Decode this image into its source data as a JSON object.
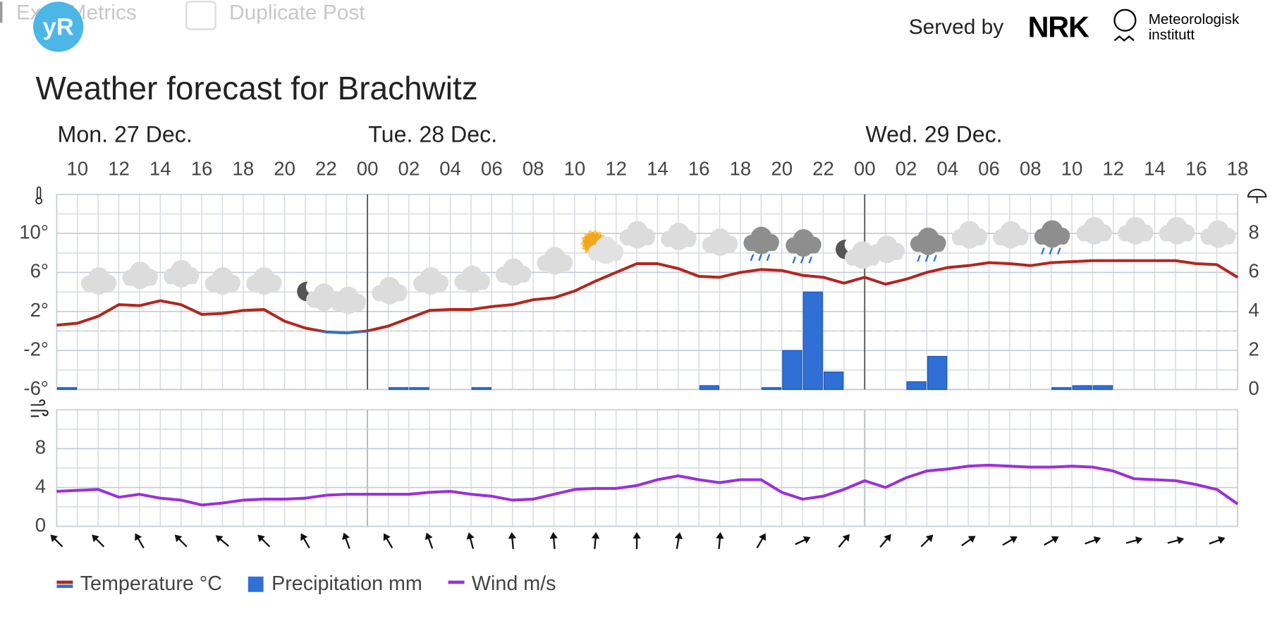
{
  "header": {
    "admin_links": [
      "ExactMetrics",
      "Duplicate Post"
    ],
    "logo": "yR",
    "served_by": "Served by",
    "nrk": "NRK",
    "met": [
      "Meteorologisk",
      "institutt"
    ]
  },
  "title": "Weather forecast for Brachwitz",
  "chart_data": [
    {
      "type": "line",
      "days": [
        {
          "label": "Mon. 27 Dec.",
          "x": 9
        },
        {
          "label": "Tue. 28 Dec.",
          "x": 24
        },
        {
          "label": "Wed. 29 Dec.",
          "x": 48
        }
      ],
      "xlim": [
        9,
        66
      ],
      "xticks": [
        10,
        12,
        14,
        16,
        18,
        20,
        22,
        {
          "value": 24,
          "label": "00"
        },
        {
          "value": 26,
          "label": "02"
        },
        {
          "value": 28,
          "label": "04"
        },
        {
          "value": 30,
          "label": "06"
        },
        {
          "value": 32,
          "label": "08"
        },
        {
          "value": 34,
          "label": "10"
        },
        {
          "value": 36,
          "label": "12"
        },
        {
          "value": 38,
          "label": "14"
        },
        {
          "value": 40,
          "label": "16"
        },
        {
          "value": 42,
          "label": "18"
        },
        {
          "value": 44,
          "label": "20"
        },
        {
          "value": 46,
          "label": "22"
        },
        {
          "value": 48,
          "label": "00"
        },
        {
          "value": 50,
          "label": "02"
        },
        {
          "value": 52,
          "label": "04"
        },
        {
          "value": 54,
          "label": "06"
        },
        {
          "value": 56,
          "label": "08"
        },
        {
          "value": 58,
          "label": "10"
        },
        {
          "value": 60,
          "label": "12"
        },
        {
          "value": 62,
          "label": "14"
        },
        {
          "value": 64,
          "label": "16"
        },
        {
          "value": 66,
          "label": "18"
        }
      ],
      "ylim": [
        -6,
        14
      ],
      "yticks": [
        {
          "value": -6,
          "label": "-6°"
        },
        {
          "value": -2,
          "label": "-2°"
        },
        {
          "value": 2,
          "label": "2°"
        },
        {
          "value": 6,
          "label": "6°"
        },
        {
          "value": 10,
          "label": "10°"
        }
      ],
      "y2lim": [
        0,
        10
      ],
      "y2ticks": [
        0,
        2,
        4,
        6,
        8
      ],
      "grid": true,
      "x": [
        9,
        10,
        11,
        12,
        13,
        14,
        15,
        16,
        17,
        18,
        19,
        20,
        21,
        22,
        23,
        24,
        25,
        26,
        27,
        28,
        29,
        30,
        31,
        32,
        33,
        34,
        35,
        36,
        37,
        38,
        39,
        40,
        41,
        42,
        43,
        44,
        45,
        46,
        47,
        48,
        49,
        50,
        51,
        52,
        53,
        54,
        55,
        56,
        57,
        58,
        59,
        60,
        61,
        62,
        63,
        64,
        65,
        66
      ],
      "series": [
        {
          "name": "Temperature °C",
          "type": "line",
          "color": "#b3261e",
          "negative_color": "#2f6fd6",
          "values": [
            0.6,
            0.8,
            1.5,
            2.7,
            2.6,
            3.1,
            2.7,
            1.7,
            1.8,
            2.1,
            2.2,
            1.0,
            0.3,
            -0.1,
            -0.2,
            0,
            0.5,
            1.3,
            2.1,
            2.2,
            2.2,
            2.5,
            2.7,
            3.2,
            3.4,
            4.1,
            5.1,
            6.0,
            6.9,
            6.9,
            6.4,
            5.6,
            5.5,
            6.0,
            6.3,
            6.2,
            5.7,
            5.5,
            4.9,
            5.5,
            4.8,
            5.3,
            6.0,
            6.5,
            6.7,
            7.0,
            6.9,
            6.7,
            7.0,
            7.1,
            7.2,
            7.2,
            7.2,
            7.2,
            7.2,
            6.9,
            6.8,
            5.5
          ]
        },
        {
          "name": "Precipitation mm",
          "type": "bar",
          "axis": "y2",
          "color": "#2f6fd6",
          "x": [
            9,
            25,
            26,
            29,
            40,
            43,
            44,
            45,
            46,
            50,
            51,
            57,
            58,
            59
          ],
          "values": [
            0.1,
            0.1,
            0.1,
            0.1,
            0.2,
            0.1,
            2.0,
            5.0,
            0.9,
            0.4,
            1.7,
            0.1,
            0.2,
            0.2
          ]
        }
      ]
    },
    {
      "type": "line",
      "xlim": [
        9,
        66
      ],
      "ylim": [
        0,
        12
      ],
      "yticks": [
        0,
        4,
        8
      ],
      "grid": true,
      "x": [
        9,
        10,
        11,
        12,
        13,
        14,
        15,
        16,
        17,
        18,
        19,
        20,
        21,
        22,
        23,
        24,
        25,
        26,
        27,
        28,
        29,
        30,
        31,
        32,
        33,
        34,
        35,
        36,
        37,
        38,
        39,
        40,
        41,
        42,
        43,
        44,
        45,
        46,
        47,
        48,
        49,
        50,
        51,
        52,
        53,
        54,
        55,
        56,
        57,
        58,
        59,
        60,
        61,
        62,
        63,
        64,
        65,
        66
      ],
      "series": [
        {
          "name": "Wind m/s",
          "type": "line",
          "color": "#9b30d9",
          "values": [
            3.6,
            3.7,
            3.8,
            3.0,
            3.3,
            2.9,
            2.7,
            2.2,
            2.4,
            2.7,
            2.8,
            2.8,
            2.9,
            3.2,
            3.3,
            3.3,
            3.3,
            3.3,
            3.5,
            3.6,
            3.3,
            3.1,
            2.7,
            2.8,
            3.3,
            3.8,
            3.9,
            3.9,
            4.2,
            4.8,
            5.2,
            4.8,
            4.5,
            4.8,
            4.8,
            3.5,
            2.8,
            3.1,
            3.8,
            4.7,
            4.0,
            5.0,
            5.7,
            5.9,
            6.2,
            6.3,
            6.2,
            6.1,
            6.1,
            6.2,
            6.1,
            5.7,
            4.9,
            4.8,
            4.7,
            4.3,
            3.8,
            2.3
          ]
        }
      ],
      "direction_x": [
        9,
        11,
        13,
        15,
        17,
        19,
        21,
        23,
        25,
        27,
        29,
        31,
        33,
        35,
        37,
        39,
        41,
        43,
        45,
        47,
        49,
        51,
        53,
        55,
        57,
        59,
        61,
        63,
        65
      ],
      "directions": [
        315,
        315,
        330,
        315,
        310,
        315,
        330,
        340,
        330,
        340,
        345,
        355,
        355,
        5,
        0,
        10,
        5,
        30,
        65,
        40,
        40,
        45,
        55,
        60,
        60,
        70,
        75,
        75,
        70
      ]
    }
  ]
}
